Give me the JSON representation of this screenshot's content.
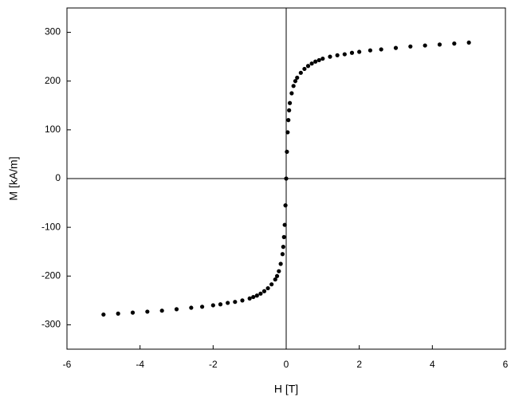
{
  "chart_data": {
    "type": "scatter",
    "x_label": "H [T]",
    "y_label": "M [kA/m]",
    "x": [
      -5,
      -4.6,
      -4.2,
      -3.8,
      -3.4,
      -3,
      -2.6,
      -2.3,
      -2,
      -1.8,
      -1.6,
      -1.4,
      -1.2,
      -1,
      -0.9,
      -0.8,
      -0.7,
      -0.6,
      -0.5,
      -0.4,
      -0.3,
      -0.25,
      -0.2,
      -0.15,
      -0.1,
      -0.08,
      -0.06,
      -0.04,
      -0.02,
      0,
      0.02,
      0.04,
      0.06,
      0.08,
      0.1,
      0.15,
      0.2,
      0.25,
      0.3,
      0.4,
      0.5,
      0.6,
      0.7,
      0.8,
      0.9,
      1,
      1.2,
      1.4,
      1.6,
      1.8,
      2,
      2.3,
      2.6,
      3,
      3.4,
      3.8,
      4.2,
      4.6,
      5
    ],
    "series": [
      {
        "color": "#000000",
        "values": [
          -279,
          -277,
          -275,
          -273,
          -271,
          -268,
          -265,
          -263,
          -260,
          -258,
          -255,
          -253,
          -250,
          -246,
          -243,
          -240,
          -236,
          -231,
          -225,
          -217,
          -207,
          -200,
          -190,
          -175,
          -155,
          -140,
          -120,
          -95,
          -55,
          0,
          55,
          95,
          120,
          140,
          155,
          175,
          190,
          200,
          207,
          217,
          225,
          231,
          236,
          240,
          243,
          246,
          250,
          253,
          255,
          258,
          260,
          263,
          265,
          268,
          271,
          273,
          275,
          277,
          279
        ]
      }
    ],
    "xlim": [
      -6,
      6
    ],
    "ylim": [
      -350,
      350
    ],
    "xticks": [
      -6,
      -4,
      -2,
      0,
      2,
      4,
      6
    ],
    "yticks": [
      -300,
      -200,
      -100,
      0,
      100,
      200,
      300
    ],
    "zero_lines": true
  }
}
